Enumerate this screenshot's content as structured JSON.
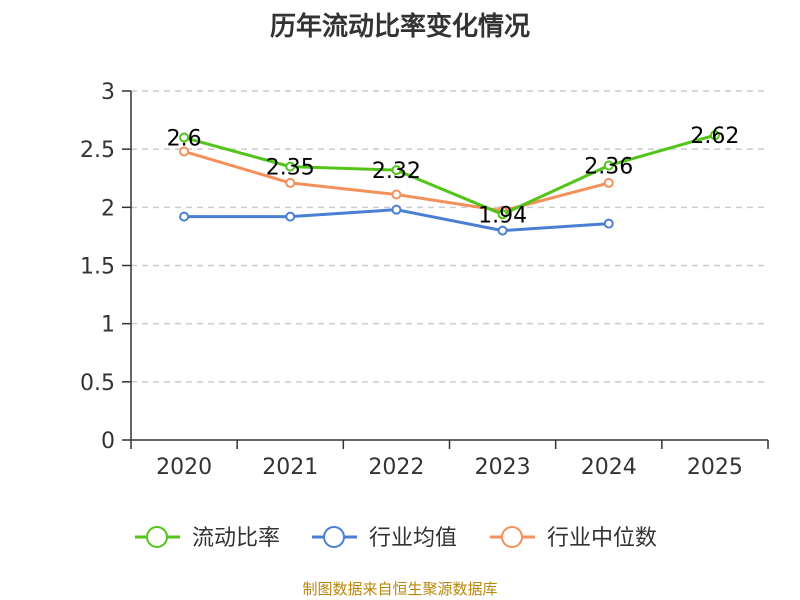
{
  "chart_data": {
    "type": "line",
    "title": "历年流动比率变化情况",
    "categories": [
      "2020",
      "2021",
      "2022",
      "2023",
      "2024",
      "2025"
    ],
    "ylim": [
      0,
      3
    ],
    "yticks": [
      "0",
      "0.5",
      "1",
      "1.5",
      "2",
      "2.5",
      "3"
    ],
    "grid": true,
    "legend_position": "bottom",
    "series": [
      {
        "name": "流动比率",
        "color": "#52c41a",
        "values": [
          2.6,
          2.35,
          2.32,
          1.94,
          2.36,
          2.62
        ],
        "labels": [
          "2.6",
          "2.35",
          "2.32",
          "1.94",
          "2.36",
          "2.62"
        ]
      },
      {
        "name": "行业均值",
        "color": "#4a7fd4",
        "values": [
          1.92,
          1.92,
          1.98,
          1.8,
          1.86,
          null
        ]
      },
      {
        "name": "行业中位数",
        "color": "#f4915b",
        "values": [
          2.48,
          2.21,
          2.11,
          1.97,
          2.21,
          null
        ]
      }
    ]
  },
  "source": "制图数据来自恒生聚源数据库"
}
